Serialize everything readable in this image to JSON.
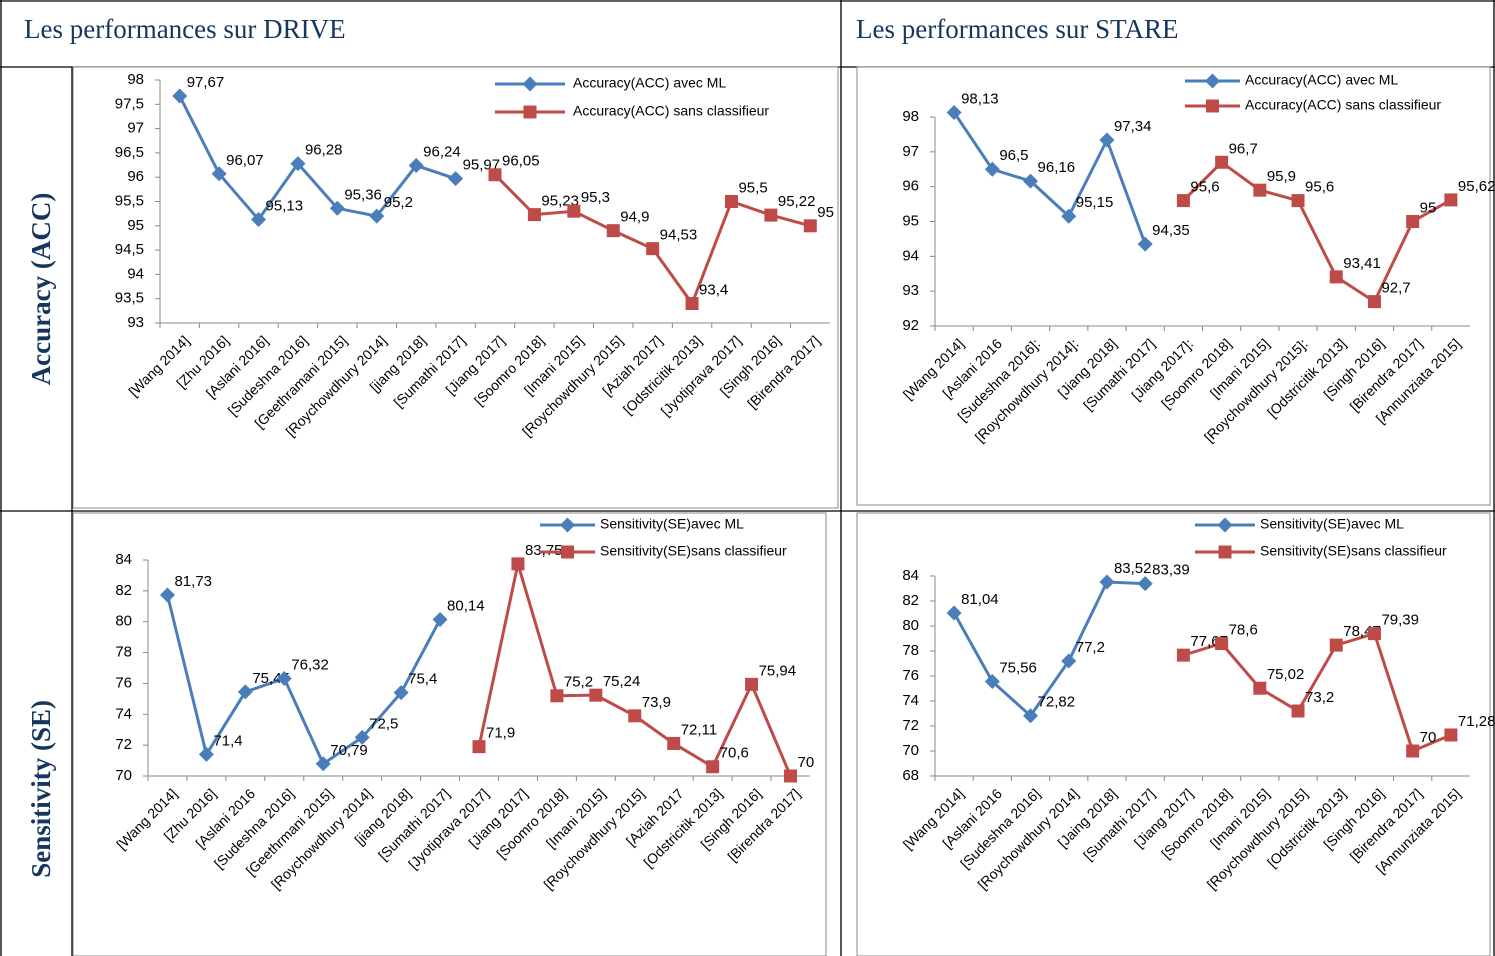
{
  "table": {
    "headers": [
      "Les performances sur DRIVE",
      "Les performances sur STARE"
    ],
    "row_labels": [
      "Accuracy (ACC)",
      "Sensitivity (SE)"
    ]
  },
  "chart_data": [
    {
      "type": "line",
      "categories": [
        "[Wang 2014]",
        "[Zhu 2016]",
        "[Aslani 2016]",
        "[Sudeshna 2016]",
        "[Geethramani 2015]",
        "[Roychowdhury 2014]",
        "[jiang 2018]",
        "[Sumathi 2017]",
        "[Jiang 2017]",
        "[Soomro 2018]",
        "[Imani 2015]",
        "[Roychowdhury 2015]",
        "[Aziah 2017]",
        "[Odstricitik 2013]",
        "[Jyotiprava 2017]",
        "[Singh 2016]",
        "[Birendra 2017]"
      ],
      "series": [
        {
          "name": "Accuracy(ACC) avec ML",
          "color": "#4a7ebb",
          "marker": "diamond",
          "values": [
            97.67,
            96.07,
            95.13,
            96.28,
            95.36,
            95.2,
            96.24,
            95.97,
            null,
            null,
            null,
            null,
            null,
            null,
            null,
            null,
            null
          ],
          "value_labels": [
            "97,67",
            "96,07",
            "95,13",
            "96,28",
            "95,36",
            "95,2",
            "96,24",
            "95,97",
            null,
            null,
            null,
            null,
            null,
            null,
            null,
            null,
            null
          ]
        },
        {
          "name": "Accuracy(ACC) sans classifieur",
          "color": "#be4b48",
          "marker": "square",
          "values": [
            null,
            null,
            null,
            null,
            null,
            null,
            null,
            null,
            96.05,
            95.23,
            95.3,
            94.9,
            94.53,
            93.4,
            95.5,
            95.22,
            95
          ],
          "value_labels": [
            null,
            null,
            null,
            null,
            null,
            null,
            null,
            null,
            "96,05",
            "95,23",
            "95,3",
            "94,9",
            "94,53",
            "93,4",
            "95,5",
            "95,22",
            "95"
          ]
        }
      ],
      "ylim": [
        93,
        98
      ],
      "yticks": [
        93,
        {
          "value": 93.5,
          "label": "93,5"
        },
        94,
        {
          "value": 94.5,
          "label": "94,5"
        },
        95,
        {
          "value": 95.5,
          "label": "95,5"
        },
        96,
        {
          "value": 96.5,
          "label": "96,5"
        },
        97,
        {
          "value": 97.5,
          "label": "97,5"
        },
        98
      ]
    },
    {
      "type": "line",
      "categories": [
        "[Wang 2014]",
        "[Aslani 2016",
        "[Sudeshna 2016]:",
        "[Roychowdhury 2014]:",
        "[Jiang 2018]",
        "[Sumathi 2017]",
        "[Jiang 2017]:",
        "[Soomro 2018]",
        "[Imani 2015]",
        "[Roychowdhury 2015]:",
        "[Odstricitik 2013]",
        "[Singh 2016]",
        "[Birendra 2017]",
        "[Annunziata 2015]"
      ],
      "series": [
        {
          "name": "Accuracy(ACC) avec ML",
          "color": "#4a7ebb",
          "marker": "diamond",
          "values": [
            98.13,
            96.5,
            96.16,
            95.15,
            97.34,
            94.35,
            null,
            null,
            null,
            null,
            null,
            null,
            null,
            null
          ],
          "value_labels": [
            "98,13",
            "96,5",
            "96,16",
            "95,15",
            "97,34",
            "94,35",
            null,
            null,
            null,
            null,
            null,
            null,
            null,
            null
          ]
        },
        {
          "name": "Accuracy(ACC) sans classifieur",
          "color": "#be4b48",
          "marker": "square",
          "values": [
            null,
            null,
            null,
            null,
            null,
            null,
            95.6,
            96.7,
            95.9,
            95.6,
            93.41,
            92.7,
            95,
            95.62
          ],
          "value_labels": [
            null,
            null,
            null,
            null,
            null,
            null,
            "95,6",
            "96,7",
            "95,9",
            "95,6",
            "93,41",
            "92,7",
            "95",
            "95,62"
          ]
        }
      ],
      "ylim": [
        92,
        98
      ],
      "yticks": [
        92,
        93,
        94,
        95,
        96,
        97,
        98
      ]
    },
    {
      "type": "line",
      "categories": [
        "[Wang 2014]",
        "[Zhu 2016]",
        "[Aslani 2016",
        "[Sudeshna 2016]",
        "[Geethrmani 2015]",
        "[Roychowdhury 2014]",
        "[jiang 2018]",
        "[Sumathi 2017]",
        "[Jyotiprava 2017]",
        "[Jiang 2017]",
        "[Soomro 2018]",
        "[Imani 2015]",
        "[Roychowdhury 2015]",
        "[Aziah 2017",
        "[Odstricitik 2013]",
        "[Singh 2016]",
        "[Birendra 2017]"
      ],
      "series": [
        {
          "name": "Sensitivity(SE)avec ML",
          "color": "#4a7ebb",
          "marker": "diamond",
          "values": [
            81.73,
            71.4,
            75.45,
            76.32,
            70.79,
            72.5,
            75.4,
            80.14,
            null,
            null,
            null,
            null,
            null,
            null,
            null,
            null,
            null
          ],
          "value_labels": [
            "81,73",
            "71,4",
            "75,45",
            "76,32",
            "70,79",
            "72,5",
            "75,4",
            "80,14",
            null,
            null,
            null,
            null,
            null,
            null,
            null,
            null,
            null
          ]
        },
        {
          "name": "Sensitivity(SE)sans classifieur",
          "color": "#be4b48",
          "marker": "square",
          "values": [
            null,
            null,
            null,
            null,
            null,
            null,
            null,
            null,
            71.9,
            83.75,
            75.2,
            75.24,
            73.9,
            72.11,
            70.6,
            75.94,
            70
          ],
          "value_labels": [
            null,
            null,
            null,
            null,
            null,
            null,
            null,
            null,
            "71,9",
            "83,75",
            "75,2",
            "75,24",
            "73,9",
            "72,11",
            "70,6",
            "75,94",
            "70"
          ]
        }
      ],
      "ylim": [
        70,
        84
      ],
      "yticks": [
        70,
        72,
        74,
        76,
        78,
        80,
        82,
        84
      ]
    },
    {
      "type": "line",
      "categories": [
        "[Wang 2014]",
        "[Aslani 2016",
        "[Sudeshna 2016]",
        "[Roychowdhury 2014]",
        "[Jaing 2018]",
        "[Sumathi 2017]",
        "[Jiang 2017]",
        "[Soomro 2018]",
        "[Imani 2015]",
        "[Roychowdhury 2015]",
        "[Odstricitik 2013]",
        "[Singh 2016]",
        "[Birendra 2017]",
        "[Annunziata 2015]"
      ],
      "series": [
        {
          "name": "Sensitivity(SE)avec ML",
          "color": "#4a7ebb",
          "marker": "diamond",
          "values": [
            81.04,
            75.56,
            72.82,
            77.2,
            83.52,
            83.39,
            null,
            null,
            null,
            null,
            null,
            null,
            null,
            null
          ],
          "value_labels": [
            "81,04",
            "75,56",
            "72,82",
            "77,2",
            "83,52",
            "83,39",
            null,
            null,
            null,
            null,
            null,
            null,
            null,
            null
          ]
        },
        {
          "name": "Sensitivity(SE)sans classifieur",
          "color": "#be4b48",
          "marker": "square",
          "values": [
            null,
            null,
            null,
            null,
            null,
            null,
            77.67,
            78.6,
            75.02,
            73.2,
            78.47,
            79.39,
            70,
            71.28
          ],
          "value_labels": [
            null,
            null,
            null,
            null,
            null,
            null,
            "77,67",
            "78,6",
            "75,02",
            "73,2",
            "78,47",
            "79,39",
            "70",
            "71,28"
          ]
        }
      ],
      "ylim": [
        68,
        84
      ],
      "yticks": [
        68,
        70,
        72,
        74,
        76,
        78,
        80,
        82,
        84
      ]
    }
  ]
}
